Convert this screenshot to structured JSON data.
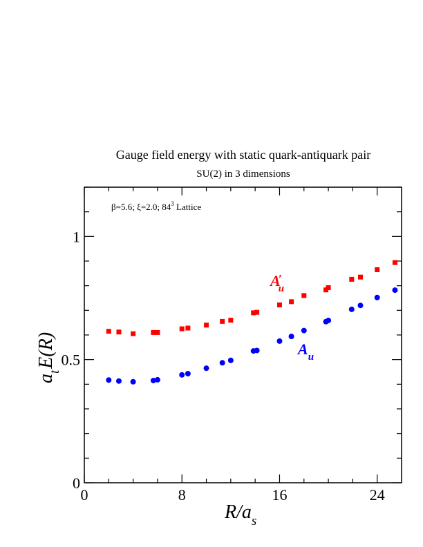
{
  "chart_data": {
    "type": "scatter",
    "title": "Gauge field energy with static quark-antiquark pair",
    "subtitle": "SU(2) in 3 dimensions",
    "annotation": {
      "prefix": "β=5.6;  ξ=2.0; 84",
      "superscript": "3",
      "suffix": " Lattice"
    },
    "xlabel": {
      "main": "R/a",
      "sub": "s"
    },
    "ylabel": {
      "pre": "a",
      "sub": "t",
      "post": "E(R)"
    },
    "xlim": [
      0,
      26
    ],
    "ylim": [
      0,
      1.2
    ],
    "xticks": [
      0,
      8,
      16,
      24
    ],
    "xtick_labels": [
      "0",
      "8",
      "16",
      "24"
    ],
    "yticks": [
      0,
      0.5,
      1
    ],
    "ytick_labels": [
      "0",
      "0.5",
      "1"
    ],
    "grid": false,
    "series": [
      {
        "name_main": "A",
        "name_sub": "u",
        "name_prime": "′",
        "color": "#ff0000",
        "marker": "square",
        "x": [
          2,
          2.83,
          4,
          5.66,
          6,
          8,
          8.49,
          10,
          11.31,
          12,
          13.86,
          14.14,
          16,
          16.97,
          18,
          19.8,
          20,
          21.91,
          22.63,
          24,
          25.46
        ],
        "y": [
          0.615,
          0.612,
          0.605,
          0.61,
          0.61,
          0.625,
          0.628,
          0.64,
          0.655,
          0.66,
          0.69,
          0.692,
          0.722,
          0.735,
          0.76,
          0.783,
          0.792,
          0.826,
          0.835,
          0.865,
          0.894
        ]
      },
      {
        "name_main": "A",
        "name_sub": "u",
        "name_prime": "",
        "color": "#0000ff",
        "marker": "circle",
        "x": [
          2,
          2.83,
          4,
          5.66,
          6,
          8,
          8.49,
          10,
          11.31,
          12,
          13.86,
          14.14,
          16,
          16.97,
          18,
          19.8,
          20,
          21.91,
          22.63,
          24,
          25.46
        ],
        "y": [
          0.417,
          0.413,
          0.41,
          0.415,
          0.418,
          0.438,
          0.443,
          0.465,
          0.487,
          0.497,
          0.535,
          0.537,
          0.575,
          0.594,
          0.618,
          0.654,
          0.659,
          0.704,
          0.72,
          0.752,
          0.782
        ]
      }
    ]
  }
}
